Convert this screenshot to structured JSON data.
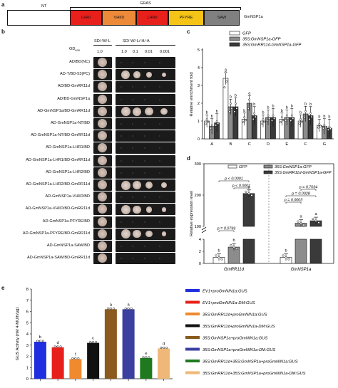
{
  "panel_a": {
    "letter": "a",
    "nt_label": "NT",
    "gras_label": "GRAS",
    "protein_name": "GmNSP1a",
    "domains": [
      {
        "label": "LHRI",
        "color": "#e8201c"
      },
      {
        "label": "VHIID",
        "color": "#ec8a3a"
      },
      {
        "label": "LHRII",
        "color": "#e8201c"
      },
      {
        "label": "PFYRE",
        "color": "#f5c417"
      },
      {
        "label": "SAW",
        "color": "#808080"
      }
    ]
  },
  "panel_b": {
    "letter": "b",
    "media_left": "SD/-W/-L",
    "media_right": "SD/-W/-L/-H/-A",
    "od_label": "OD",
    "od_sub": "600",
    "od_left": "1.0",
    "od_right": [
      "1.0",
      "0.1",
      "0.01",
      "0.001"
    ],
    "rows": [
      {
        "label": "AD/BD(NC)",
        "growth": [
          0,
          0,
          0,
          0
        ]
      },
      {
        "label": "AD-T/BD-53(PC)",
        "growth": [
          0.9,
          0.6,
          0.4,
          0.2
        ]
      },
      {
        "label": "AD/BD-GmRR11d",
        "growth": [
          0,
          0,
          0,
          0
        ]
      },
      {
        "label": "AD/BD-GmNSP1a",
        "growth": [
          0,
          0,
          0,
          0
        ]
      },
      {
        "label": "AD-GmNSP1a/BD-GmRR11d",
        "growth": [
          1,
          0.9,
          0.8,
          0.6
        ]
      },
      {
        "label": "AD-GmNSP1a-NT/BD",
        "growth": [
          0,
          0,
          0,
          0
        ]
      },
      {
        "label": "AD-GmNSP1a-NT/BD-GmRR11d",
        "growth": [
          0,
          0,
          0,
          0
        ]
      },
      {
        "label": "AD-GmNSP1a-LHR1/BD",
        "growth": [
          0,
          0,
          0,
          0
        ]
      },
      {
        "label": "AD-GmNSP1a-LHR1/BD-GmRR11d",
        "growth": [
          0,
          0,
          0,
          0
        ]
      },
      {
        "label": "AD-GmNSP1a-LHR2/BD",
        "growth": [
          0,
          0,
          0,
          0
        ]
      },
      {
        "label": "AD-GmNSP1a-LHR2/BD-GmRR11d",
        "growth": [
          1,
          0.9,
          0.7,
          0.5
        ]
      },
      {
        "label": "AD-GmNSP1a-VHIID/BD",
        "growth": [
          0,
          0,
          0,
          0
        ]
      },
      {
        "label": "AD-GmNSP1a-VHIID/BD-GmRR11d",
        "growth": [
          1,
          0.8,
          0.5,
          0.3
        ]
      },
      {
        "label": "AD-GmNSP1a-PFYRE/BD",
        "growth": [
          0,
          0,
          0,
          0
        ]
      },
      {
        "label": "AD-GmNSP1a-PFYRE/BD-GmRR11d",
        "growth": [
          1,
          0.8,
          0.6,
          0.3
        ]
      },
      {
        "label": "AD-GmNSP1a-SAW/BD",
        "growth": [
          0,
          0,
          0,
          0
        ]
      },
      {
        "label": "AD-GmNSP1a-SAW/BD-GmRR11d",
        "growth": [
          0,
          0,
          0,
          0
        ]
      }
    ]
  },
  "chart_data": [
    {
      "panel": "c",
      "type": "bar",
      "ylabel": "Relative enrichment fold",
      "ylim": [
        0,
        5
      ],
      "yticks": [
        "0",
        "1",
        "2",
        "3",
        "4",
        "5"
      ],
      "categories": [
        "A",
        "B",
        "C",
        "D",
        "E",
        "F",
        "G"
      ],
      "series": [
        {
          "name": "GFP",
          "color": "#ffffff",
          "values": [
            1.0,
            3.4,
            1.1,
            1.0,
            1.1,
            1.0,
            0.75
          ],
          "letters": [
            "b",
            "a",
            "b",
            "b",
            "b",
            "b",
            "b"
          ]
        },
        {
          "name": "35S:GmNSP1a-GFP",
          "color": "#8c8c8c",
          "values": [
            0.7,
            1.8,
            2.0,
            1.2,
            1.2,
            1.4,
            0.7
          ],
          "letters": [
            "b",
            "b",
            "a",
            "b",
            "b",
            "b",
            "b"
          ]
        },
        {
          "name": "35S:GmRR11d-GmNSP1a-GFP",
          "color": "#3a3a3a",
          "values": [
            0.9,
            1.8,
            1.3,
            1.2,
            1.2,
            1.3,
            0.6
          ],
          "letters": [
            "b",
            "b",
            "b",
            "b",
            "b",
            "b",
            "b"
          ]
        }
      ]
    },
    {
      "panel": "d",
      "type": "bar",
      "ylabel": "Relative expression level",
      "ylim_lower": [
        0,
        4
      ],
      "ylim_upper": [
        100,
        300
      ],
      "yticks_lower": [
        "0",
        "2",
        "4"
      ],
      "yticks_upper": [
        "100",
        "200",
        "300"
      ],
      "categories": [
        "GmRR11d",
        "GmNSP1a"
      ],
      "series": [
        {
          "name": "GFP",
          "color": "#ffffff",
          "values": [
            1.0,
            1.0
          ],
          "letters": [
            "b",
            "b"
          ]
        },
        {
          "name": "35S:GmNSP1a-GFP",
          "color": "#8c8c8c",
          "values": [
            2.7,
            110
          ],
          "letters": [
            "b",
            "a"
          ]
        },
        {
          "name": "35S:GmRR11d-GmNSP1a-GFP",
          "color": "#3a3a3a",
          "values": [
            205,
            118
          ],
          "letters": [
            "a",
            "a"
          ]
        }
      ],
      "annotations": [
        {
          "text": "p = 0.0799",
          "group": 0,
          "from": 0,
          "to": 1
        },
        {
          "text": "p < 0.0001",
          "group": 0,
          "from": 1,
          "to": 2
        },
        {
          "text": "p < 0.0001",
          "group": 0,
          "from": 0,
          "to": 2
        },
        {
          "text": "p = 0.0003",
          "group": 1,
          "from": 0,
          "to": 1
        },
        {
          "text": "p = 0.7034",
          "group": 1,
          "from": 1,
          "to": 2
        },
        {
          "text": "p = 0.0028",
          "group": 1,
          "from": 0,
          "to": 2
        }
      ]
    },
    {
      "panel": "e",
      "type": "bar",
      "ylabel": "GUS Activity (nM 4-MU/h/μg)",
      "ylim": [
        0,
        8
      ],
      "yticks": [
        "0",
        "1",
        "2",
        "3",
        "4",
        "5",
        "6",
        "7",
        "8"
      ],
      "categories": [
        "EV1+proGmNIN1a:GUS",
        "EV1+proGmNIN1a-DM:GUS",
        "35S:GmRR11d+proGmNIN1a:GUS",
        "35S:GmRR11d+proGmNIN1a-DM:GUS",
        "35S:GmNSP1a+proGmNIN1a:GUS",
        "35S:GmNSP1a+proGmNIN1a-DM:GUS",
        "35S:GmRR11d+35S:GmNSP1a+proGmNIN1a:GUS",
        "35S:GmRR11d+35S:GmNSP1a+proGmNIN1a-DM:GUS"
      ],
      "colors": [
        "#1f2fe0",
        "#e8201c",
        "#f08a2e",
        "#111111",
        "#8a5a1e",
        "#3a3fa0",
        "#1f7a1f",
        "#f0b878"
      ],
      "values": [
        3.3,
        2.8,
        1.75,
        3.2,
        6.2,
        6.2,
        1.85,
        2.7
      ],
      "letters": [
        "b",
        "d",
        "f",
        "c",
        "a",
        "a",
        "e",
        "d"
      ]
    }
  ]
}
